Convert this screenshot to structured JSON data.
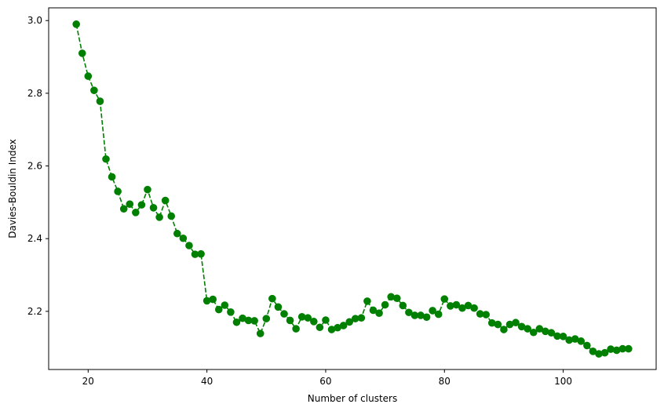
{
  "chart_data": {
    "type": "line",
    "title": "",
    "xlabel": "Number of clusters",
    "ylabel": "Davies-Bouldin Index",
    "xlim": [
      13.35,
      115.65
    ],
    "ylim": [
      2.04,
      3.035
    ],
    "xticks": [
      20,
      40,
      60,
      80,
      100
    ],
    "yticks": [
      2.2,
      2.4,
      2.6,
      2.8,
      3.0
    ],
    "xtick_labels": [
      "20",
      "40",
      "60",
      "80",
      "100"
    ],
    "ytick_labels": [
      "2.2",
      "2.4",
      "2.6",
      "2.8",
      "3.0"
    ],
    "grid": false,
    "legend": "none",
    "colors": {
      "series": "#008000"
    },
    "line_style": "dashed",
    "marker": "circle",
    "series": [
      {
        "x": [
          18,
          19,
          20,
          21,
          22,
          23,
          24,
          25,
          26,
          27,
          28,
          29,
          30,
          31,
          32,
          33,
          34,
          35,
          36,
          37,
          38,
          39,
          40,
          41,
          42,
          43,
          44,
          45,
          46,
          47,
          48,
          49,
          50,
          51,
          52,
          53,
          54,
          55,
          56,
          57,
          58,
          59,
          60,
          61,
          62,
          63,
          64,
          65,
          66,
          67,
          68,
          69,
          70,
          71,
          72,
          73,
          74,
          75,
          76,
          77,
          78,
          79,
          80,
          81,
          82,
          83,
          84,
          85,
          86,
          87,
          88,
          89,
          90,
          91,
          92,
          93,
          94,
          95,
          96,
          97,
          98,
          99,
          100,
          101,
          102,
          103,
          104,
          105,
          106,
          107,
          108,
          109,
          110,
          111
        ],
        "values": [
          2.99,
          2.91,
          2.847,
          2.808,
          2.778,
          2.619,
          2.57,
          2.53,
          2.482,
          2.495,
          2.472,
          2.493,
          2.535,
          2.485,
          2.459,
          2.505,
          2.462,
          2.414,
          2.401,
          2.381,
          2.357,
          2.358,
          2.229,
          2.233,
          2.205,
          2.217,
          2.198,
          2.17,
          2.181,
          2.175,
          2.174,
          2.139,
          2.18,
          2.235,
          2.212,
          2.193,
          2.175,
          2.152,
          2.185,
          2.182,
          2.172,
          2.156,
          2.176,
          2.15,
          2.155,
          2.161,
          2.171,
          2.18,
          2.182,
          2.228,
          2.203,
          2.195,
          2.218,
          2.24,
          2.236,
          2.216,
          2.197,
          2.189,
          2.189,
          2.184,
          2.202,
          2.192,
          2.234,
          2.215,
          2.218,
          2.209,
          2.216,
          2.209,
          2.193,
          2.191,
          2.168,
          2.164,
          2.15,
          2.164,
          2.169,
          2.158,
          2.152,
          2.142,
          2.152,
          2.145,
          2.141,
          2.132,
          2.131,
          2.121,
          2.124,
          2.118,
          2.106,
          2.09,
          2.083,
          2.086,
          2.096,
          2.093,
          2.097,
          2.097
        ]
      }
    ]
  }
}
